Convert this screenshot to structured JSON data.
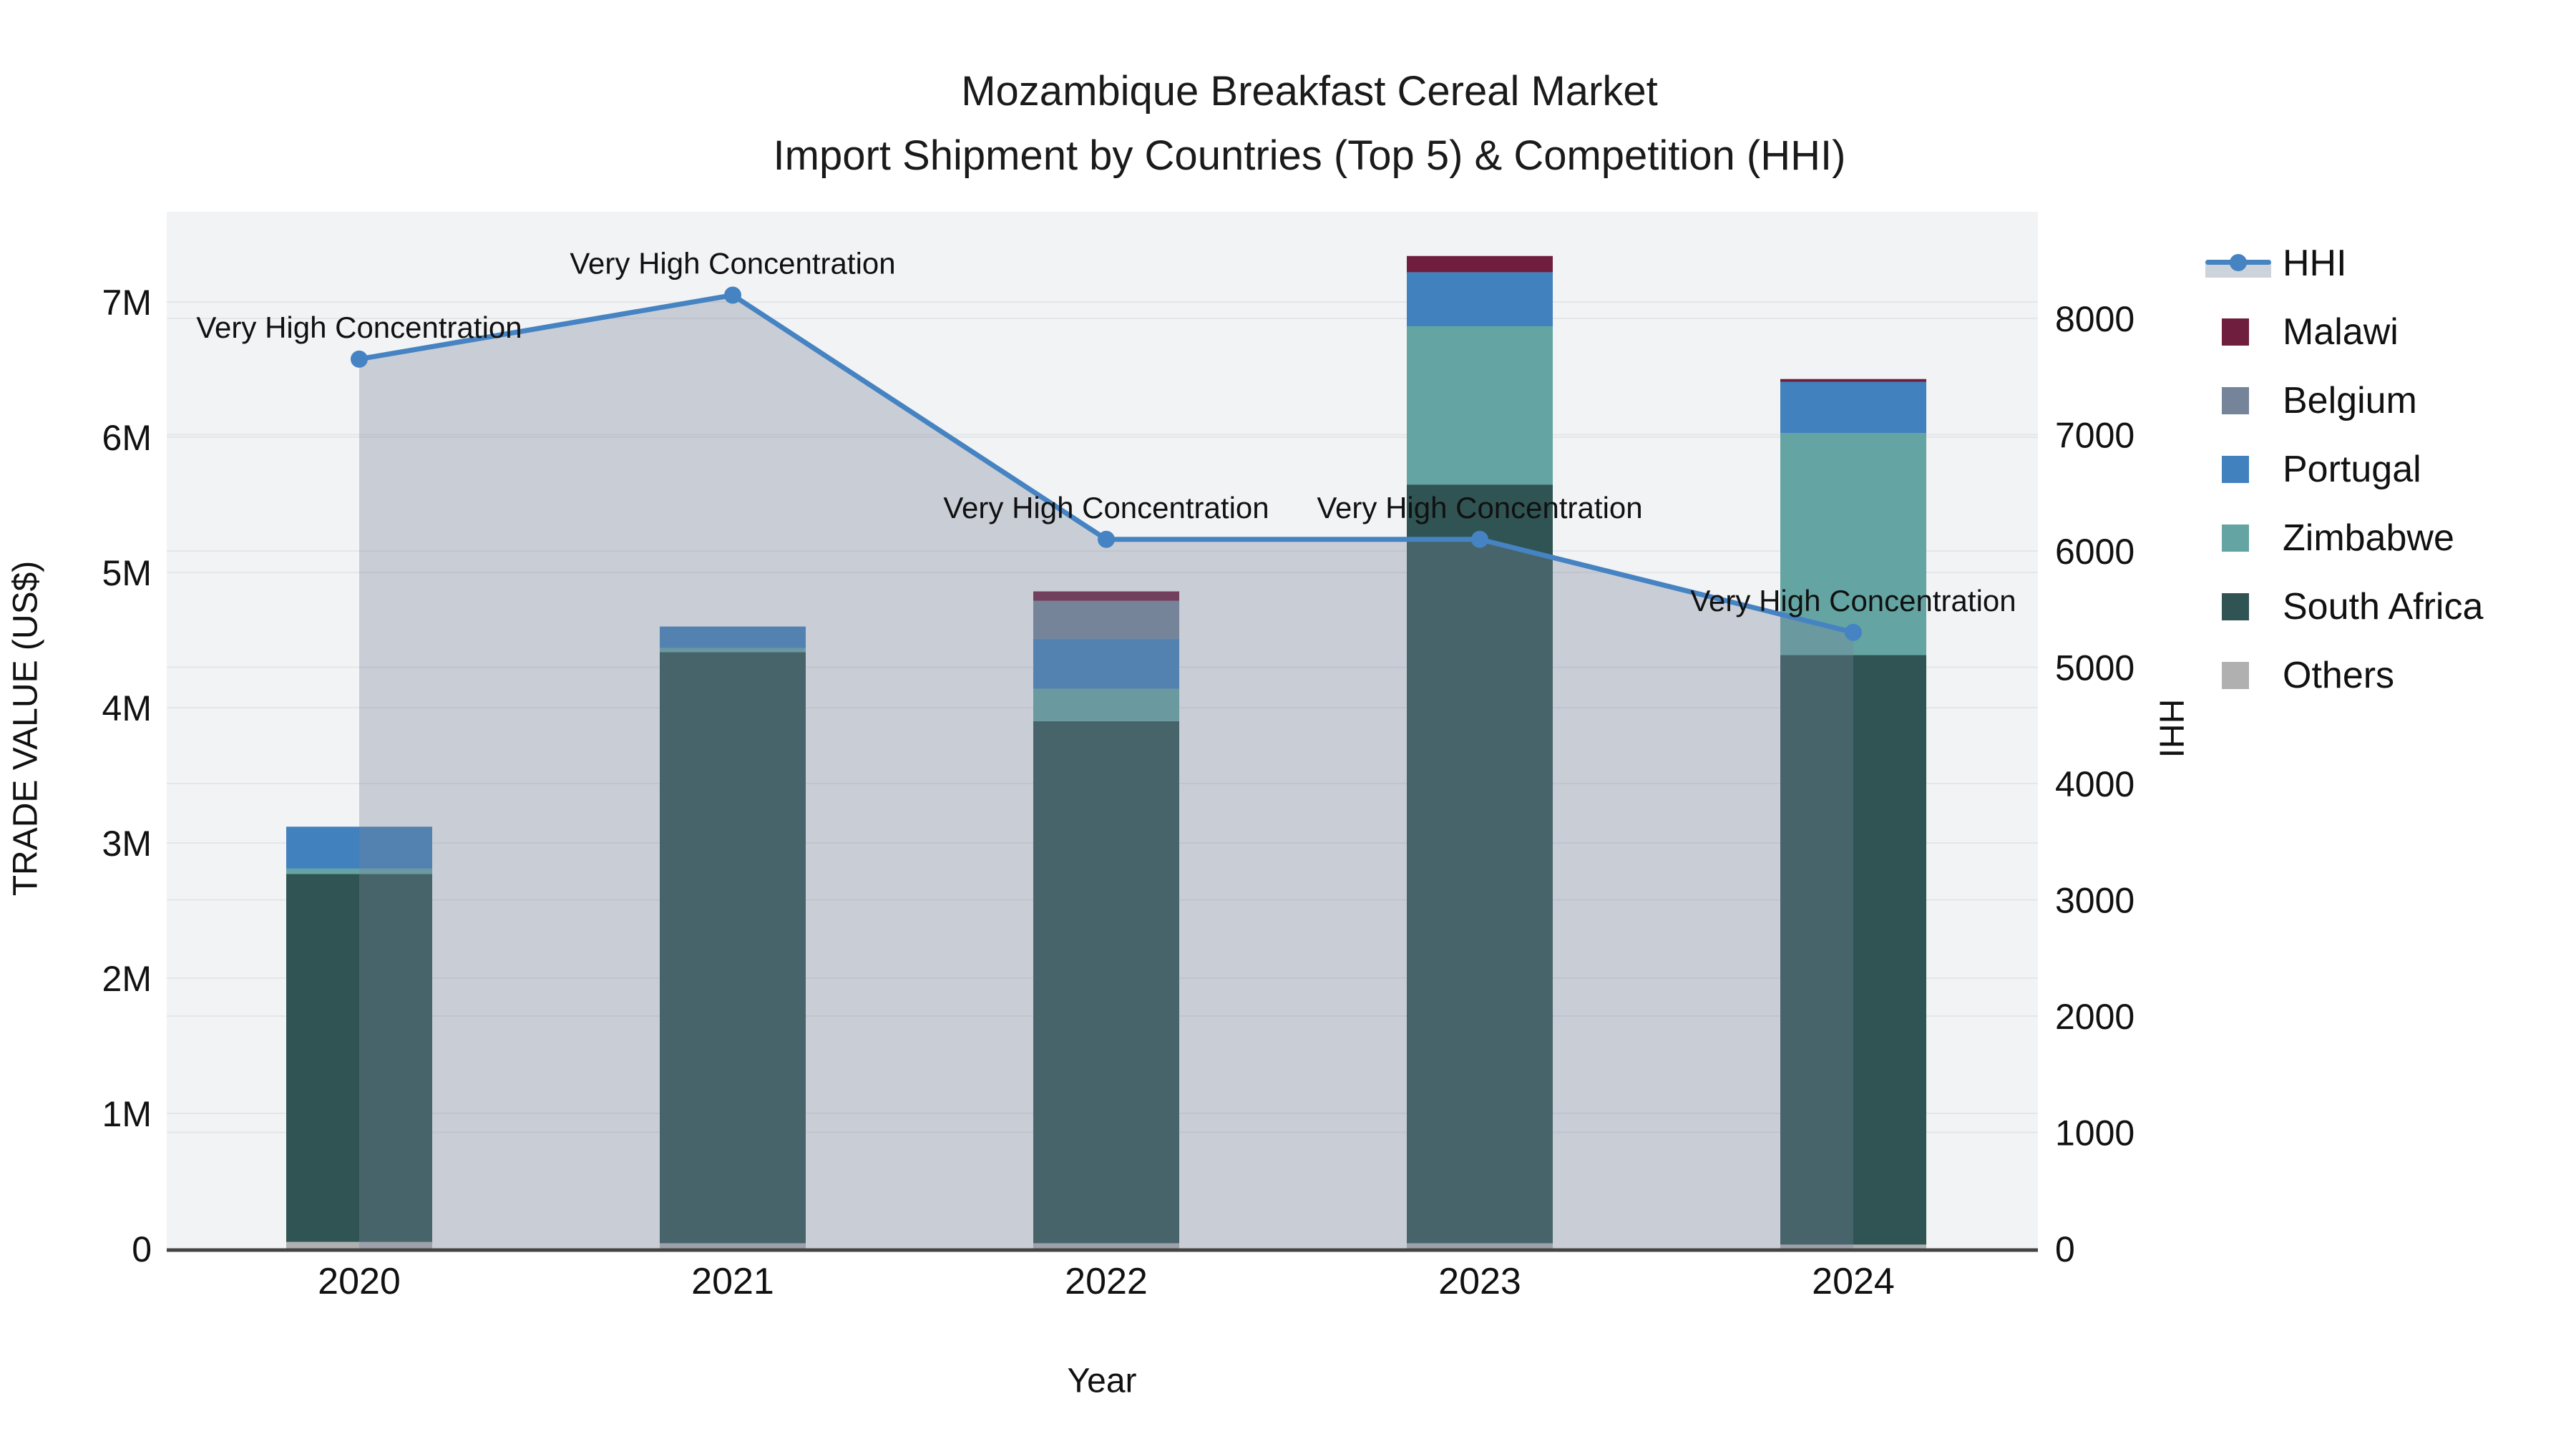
{
  "title": {
    "line1": "Mozambique Breakfast Cereal Market",
    "line2": "Import Shipment by Countries (Top 5) & Competition (HHI)"
  },
  "axes": {
    "x": {
      "title": "Year",
      "tick_labels": [
        "2020",
        "2021",
        "2022",
        "2023",
        "2024"
      ]
    },
    "y_left": {
      "title": "TRADE VALUE (US$)",
      "tick_labels": [
        "0",
        "1M",
        "2M",
        "3M",
        "4M",
        "5M",
        "6M",
        "7M"
      ],
      "max_musd": 7.66
    },
    "y_right": {
      "title": "HHI",
      "tick_labels": [
        "0",
        "1000",
        "2000",
        "3000",
        "4000",
        "5000",
        "6000",
        "7000",
        "8000"
      ],
      "max": 8917
    }
  },
  "legend": {
    "items": [
      {
        "label": "HHI",
        "type": "line",
        "color": "#4583c2",
        "band_color": "#ccd3da"
      },
      {
        "label": "Malawi",
        "type": "box",
        "color": "#6f1e3e"
      },
      {
        "label": "Belgium",
        "type": "box",
        "color": "#76849a"
      },
      {
        "label": "Portugal",
        "type": "box",
        "color": "#4181bd"
      },
      {
        "label": "Zimbabwe",
        "type": "box",
        "color": "#64a5a3"
      },
      {
        "label": "South Africa",
        "type": "box",
        "color": "#2f5453"
      },
      {
        "label": "Others",
        "type": "box",
        "color": "#b0b0b0"
      }
    ]
  },
  "colors": {
    "plot_bg": "#f2f3f4",
    "grid": "#e4e6e9",
    "axis_line": "#444444",
    "text": "#111111",
    "hhi_line": "#4583c2",
    "hhi_band_fill_rgba": "rgba(120,133,154,0.34)"
  },
  "chart_data": {
    "type": "stacked-bar + line (dual axis)",
    "title": "Mozambique Breakfast Cereal Market — Import Shipment by Countries (Top 5) & Competition (HHI)",
    "xlabel": "Year",
    "ylabel_left": "TRADE VALUE (US$)",
    "ylabel_right": "HHI",
    "categories": [
      "2020",
      "2021",
      "2022",
      "2023",
      "2024"
    ],
    "unit": "US$ millions (left axis, values estimated from gridlines)",
    "series": [
      {
        "name": "Others",
        "color": "#b0b0b0",
        "values": [
          0.05,
          0.04,
          0.04,
          0.04,
          0.03
        ]
      },
      {
        "name": "South Africa",
        "color": "#2f5453",
        "values": [
          2.72,
          4.37,
          3.86,
          5.61,
          4.36
        ]
      },
      {
        "name": "Zimbabwe",
        "color": "#64a5a3",
        "values": [
          0.04,
          0.03,
          0.24,
          1.17,
          1.64
        ]
      },
      {
        "name": "Portugal",
        "color": "#4181bd",
        "values": [
          0.31,
          0.16,
          0.37,
          0.4,
          0.38
        ]
      },
      {
        "name": "Belgium",
        "color": "#76849a",
        "values": [
          0.0,
          0.0,
          0.28,
          0.0,
          0.0
        ]
      },
      {
        "name": "Malawi",
        "color": "#6f1e3e",
        "values": [
          0.0,
          0.0,
          0.07,
          0.12,
          0.02
        ]
      }
    ],
    "bar_totals_musd": [
      3.12,
      4.6,
      4.86,
      7.34,
      6.43
    ],
    "hhi": {
      "name": "HHI",
      "values": [
        7650,
        8200,
        6100,
        6100,
        5300
      ],
      "annotations": [
        "Very High Concentration",
        "Very High Concentration",
        "Very High Concentration",
        "Very High Concentration",
        "Very High Concentration"
      ]
    },
    "axis_ranges": {
      "left_musd": [
        0,
        7.66
      ],
      "right_hhi": [
        0,
        8917
      ]
    },
    "grid": true,
    "legend_position": "right"
  }
}
